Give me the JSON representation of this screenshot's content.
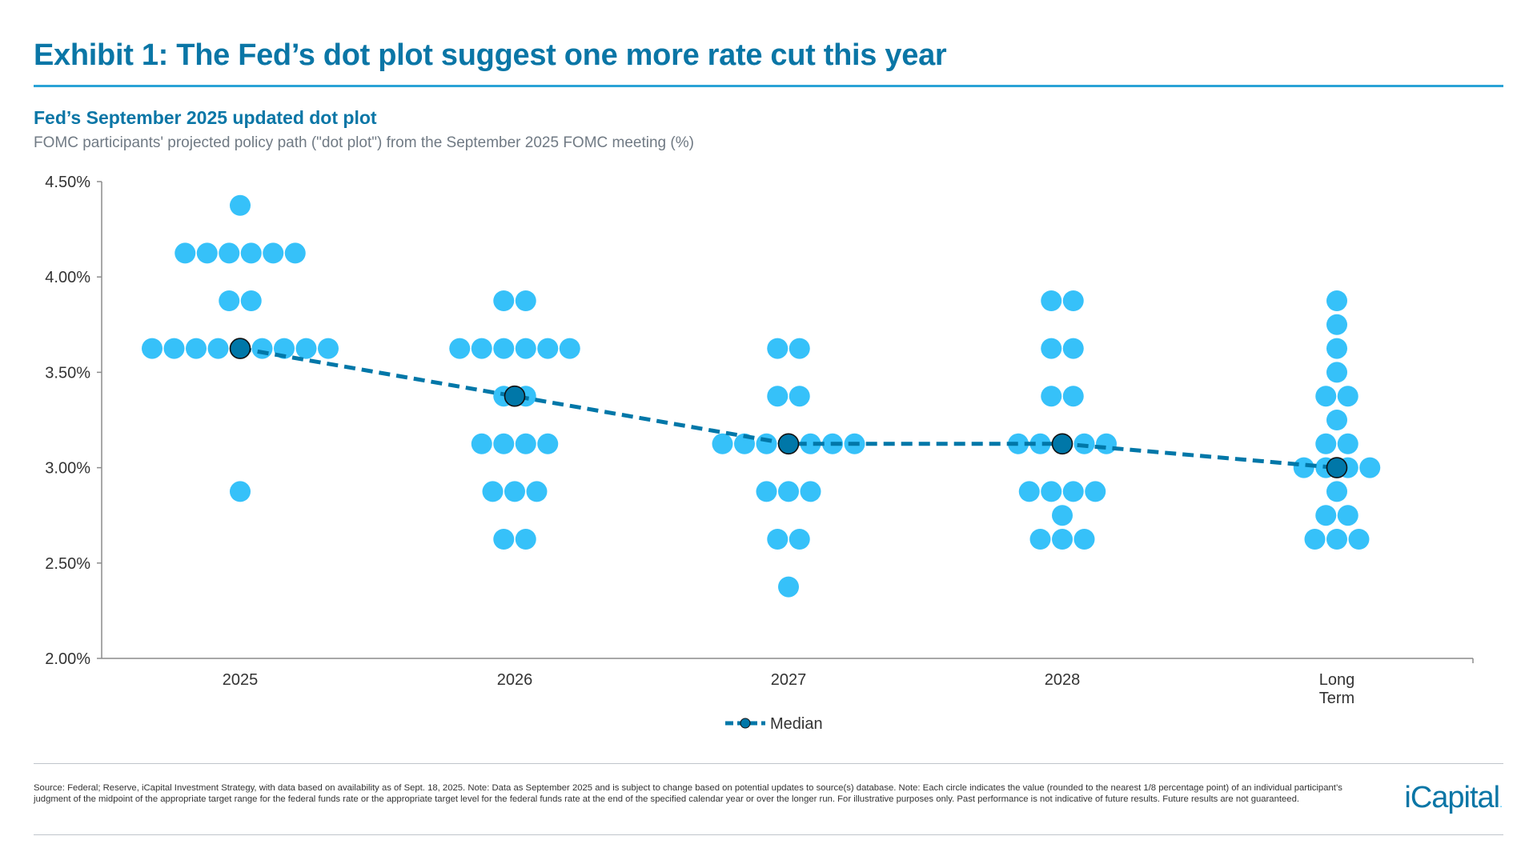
{
  "title": "Exhibit 1: The Fed’s dot plot suggest one more rate cut this year",
  "subtitle": "Fed’s September 2025 updated dot plot",
  "description": "FOMC participants' projected policy path (\"dot plot\") from the September 2025 FOMC meeting (%)",
  "colors": {
    "dot": "#36c1f9",
    "median": "#0077a8",
    "title": "#0a76a6",
    "axis": "#8c8c8c"
  },
  "chart_data": {
    "type": "scatter",
    "categories": [
      "2025",
      "2026",
      "2027",
      "2028",
      "Long Term"
    ],
    "ylim": [
      2.0,
      4.5
    ],
    "yticks": [
      2.0,
      2.5,
      3.0,
      3.5,
      4.0,
      4.5
    ],
    "ytick_labels": [
      "2.00%",
      "2.50%",
      "3.00%",
      "3.50%",
      "4.00%",
      "4.50%"
    ],
    "grid": false,
    "legend_position": "bottom",
    "dots": [
      [
        {
          "rate": 4.375,
          "count": 1
        },
        {
          "rate": 4.125,
          "count": 6
        },
        {
          "rate": 3.875,
          "count": 2
        },
        {
          "rate": 3.625,
          "count": 9
        },
        {
          "rate": 2.875,
          "count": 1
        }
      ],
      [
        {
          "rate": 3.875,
          "count": 2
        },
        {
          "rate": 3.625,
          "count": 6
        },
        {
          "rate": 3.375,
          "count": 2
        },
        {
          "rate": 3.125,
          "count": 4
        },
        {
          "rate": 2.875,
          "count": 3
        },
        {
          "rate": 2.625,
          "count": 2
        }
      ],
      [
        {
          "rate": 3.625,
          "count": 2
        },
        {
          "rate": 3.375,
          "count": 2
        },
        {
          "rate": 3.125,
          "count": 7
        },
        {
          "rate": 2.875,
          "count": 3
        },
        {
          "rate": 2.625,
          "count": 2
        },
        {
          "rate": 2.375,
          "count": 1
        }
      ],
      [
        {
          "rate": 3.875,
          "count": 2
        },
        {
          "rate": 3.625,
          "count": 2
        },
        {
          "rate": 3.375,
          "count": 2
        },
        {
          "rate": 3.125,
          "count": 5
        },
        {
          "rate": 2.875,
          "count": 4
        },
        {
          "rate": 2.75,
          "count": 1
        },
        {
          "rate": 2.625,
          "count": 3
        }
      ],
      [
        {
          "rate": 3.875,
          "count": 1
        },
        {
          "rate": 3.75,
          "count": 1
        },
        {
          "rate": 3.625,
          "count": 1
        },
        {
          "rate": 3.5,
          "count": 1
        },
        {
          "rate": 3.375,
          "count": 2
        },
        {
          "rate": 3.25,
          "count": 1
        },
        {
          "rate": 3.125,
          "count": 2
        },
        {
          "rate": 3.0,
          "count": 4
        },
        {
          "rate": 2.875,
          "count": 1
        },
        {
          "rate": 2.75,
          "count": 2
        },
        {
          "rate": 2.625,
          "count": 3
        }
      ]
    ],
    "series": [
      {
        "name": "Median",
        "values": [
          3.625,
          3.375,
          3.125,
          3.125,
          3.0
        ]
      }
    ]
  },
  "footnote": "Source: Federal; Reserve, iCapital Investment Strategy, with data based on availability as of Sept. 18, 2025. Note: Data as September 2025 and is subject to change based on potential updates to source(s) database. Note: Each circle indicates the value (rounded to the nearest 1/8 percentage point) of an individual participant’s judgment of the midpoint of the appropriate target range for the federal funds rate or the appropriate target level for the federal funds rate at the end of the specified calendar year or over the longer run. For illustrative purposes only. Past performance is not indicative of future results. Future results are not guaranteed.",
  "logo": "iCapital"
}
